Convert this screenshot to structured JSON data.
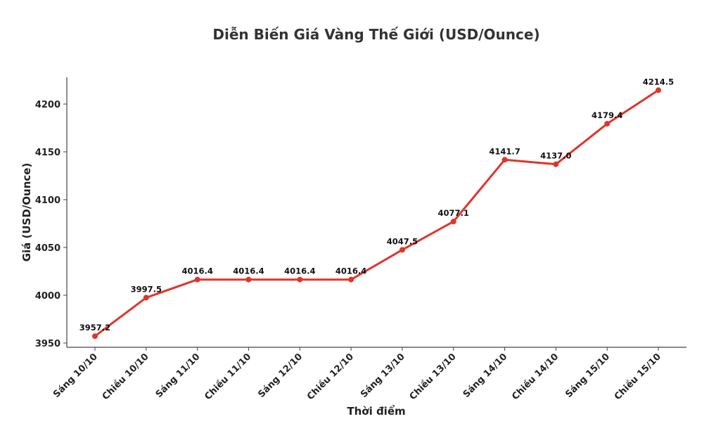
{
  "chart_data": {
    "type": "line",
    "title": "Diễn Biến Giá Vàng Thế Giới (USD/Ounce)",
    "xlabel": "Thời điểm",
    "ylabel": "Giá (USD/Ounce)",
    "categories": [
      "Sáng 10/10",
      "Chiều 10/10",
      "Sáng 11/10",
      "Chiều 11/10",
      "Sáng 12/10",
      "Chiều 12/10",
      "Sáng 13/10",
      "Chiều 13/10",
      "Sáng 14/10",
      "Chiều 14/10",
      "Sáng 15/10",
      "Chiều 15/10"
    ],
    "series": [
      {
        "name": "Giá vàng",
        "color": "#e0352b",
        "values": [
          3957.2,
          3997.5,
          4016.4,
          4016.4,
          4016.4,
          4016.4,
          4047.5,
          4077.1,
          4141.7,
          4137.0,
          4179.4,
          4214.5
        ]
      }
    ],
    "data_labels": [
      "3957.2",
      "3997.5",
      "4016.4",
      "4016.4",
      "4016.4",
      "4016.4",
      "4047.5",
      "4077.1",
      "4141.7",
      "4137.0",
      "4179.4",
      "4214.5"
    ],
    "yticks": [
      3950,
      4000,
      4050,
      4100,
      4150,
      4200
    ],
    "ylim": [
      3946,
      4226
    ],
    "grid": false,
    "legend": null,
    "xtick_rotation": 45
  }
}
